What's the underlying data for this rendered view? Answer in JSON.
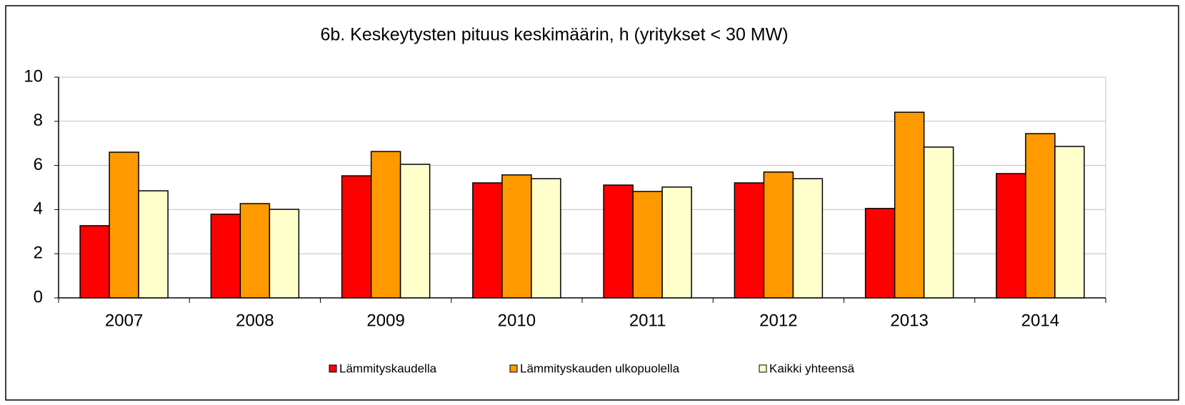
{
  "chart_data": {
    "type": "bar",
    "title": "6b. Keskeytysten pituus keskimäärin, h (yritykset < 30 MW)",
    "categories": [
      "2007",
      "2008",
      "2009",
      "2010",
      "2011",
      "2012",
      "2013",
      "2014"
    ],
    "series": [
      {
        "name": "Lämmityskaudella",
        "color": "#ff0000",
        "values": [
          3.27,
          3.79,
          5.53,
          5.21,
          5.11,
          5.21,
          4.05,
          5.63
        ]
      },
      {
        "name": "Lämmityskauden ulkopuolella",
        "color": "#ff9900",
        "values": [
          6.6,
          4.27,
          6.63,
          5.57,
          4.82,
          5.7,
          8.41,
          7.44
        ]
      },
      {
        "name": "Kaikki yhteensä",
        "color": "#ffffcc",
        "values": [
          4.85,
          4.01,
          6.05,
          5.4,
          5.02,
          5.4,
          6.83,
          6.86
        ]
      }
    ],
    "ylim": [
      0,
      10
    ],
    "yticks": [
      0,
      2,
      4,
      6,
      8,
      10
    ],
    "grid": true,
    "legend": "bottom"
  }
}
